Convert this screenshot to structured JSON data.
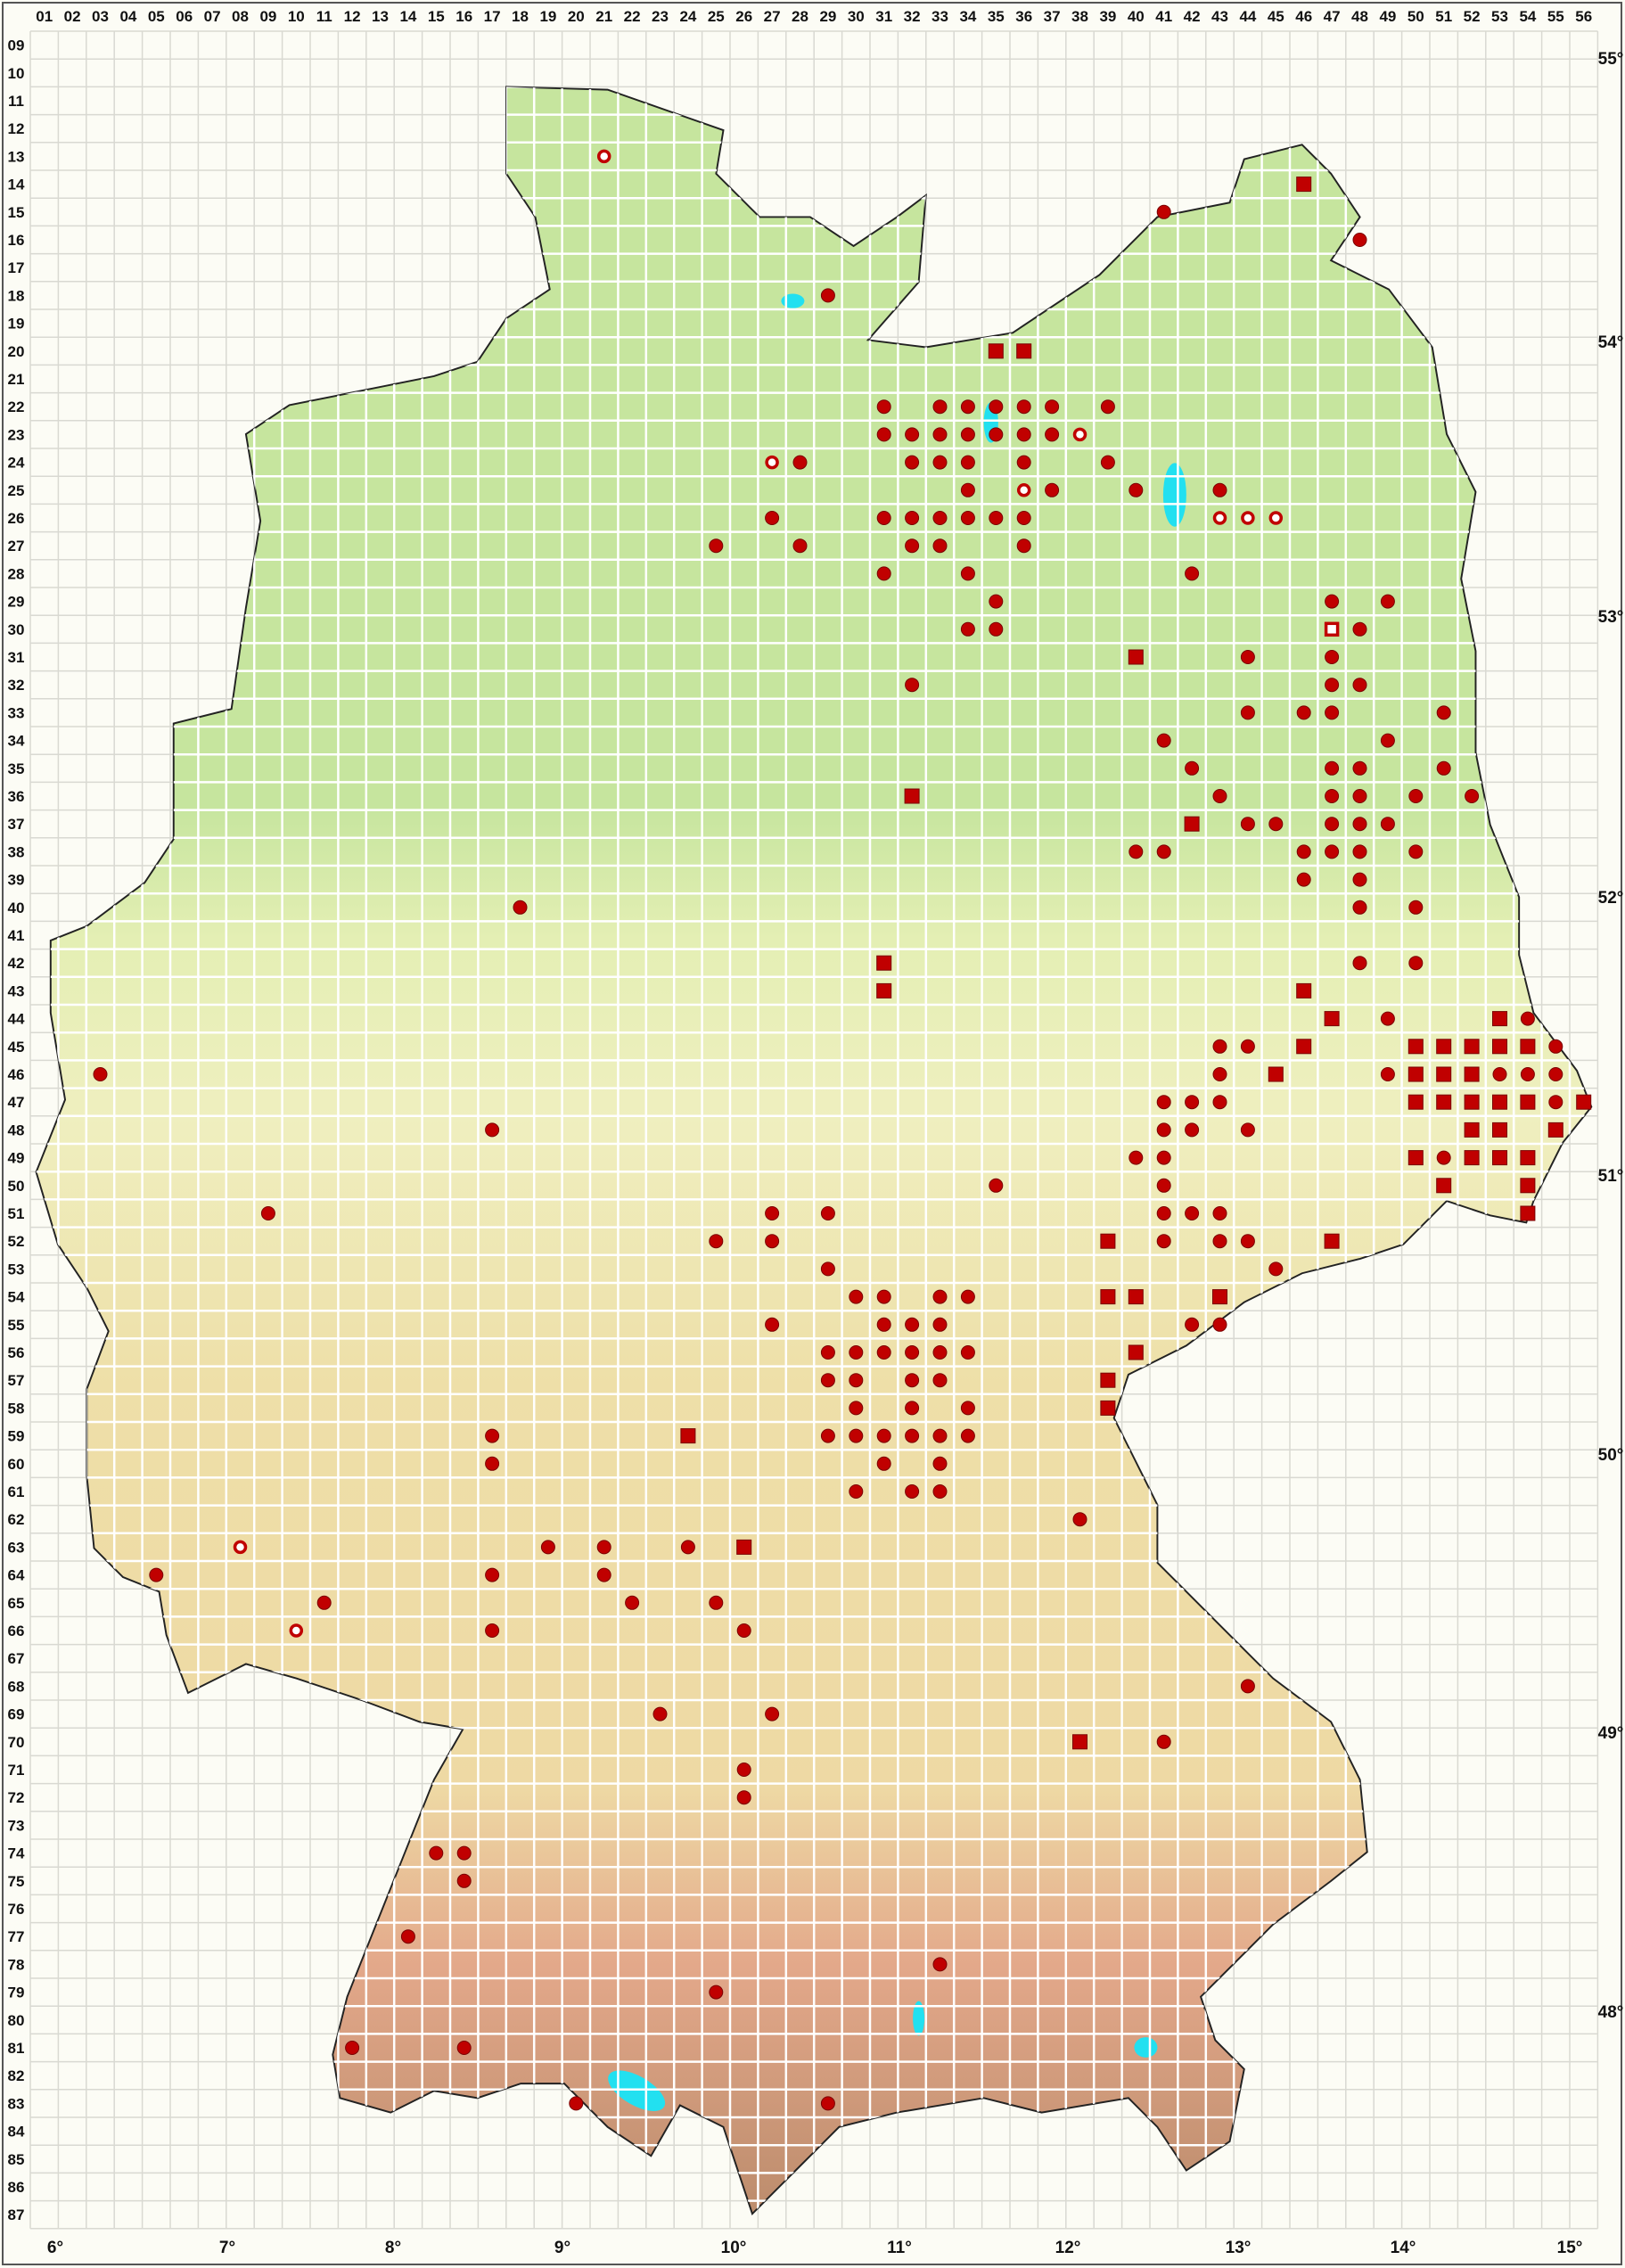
{
  "map": {
    "column_labels": [
      "01",
      "02",
      "03",
      "04",
      "05",
      "06",
      "07",
      "08",
      "09",
      "10",
      "11",
      "12",
      "13",
      "14",
      "15",
      "16",
      "17",
      "18",
      "19",
      "20",
      "21",
      "22",
      "23",
      "24",
      "25",
      "26",
      "27",
      "28",
      "29",
      "30",
      "31",
      "32",
      "33",
      "34",
      "35",
      "36",
      "37",
      "38",
      "39",
      "40",
      "41",
      "42",
      "43",
      "44",
      "45",
      "46",
      "47",
      "48",
      "49",
      "50",
      "51",
      "52",
      "53",
      "54",
      "55",
      "56"
    ],
    "row_labels": [
      "09",
      "10",
      "11",
      "12",
      "13",
      "14",
      "15",
      "16",
      "17",
      "18",
      "19",
      "20",
      "21",
      "22",
      "23",
      "24",
      "25",
      "26",
      "27",
      "28",
      "29",
      "30",
      "31",
      "32",
      "33",
      "34",
      "35",
      "36",
      "37",
      "38",
      "39",
      "40",
      "41",
      "42",
      "43",
      "44",
      "45",
      "46",
      "47",
      "48",
      "49",
      "50",
      "51",
      "52",
      "53",
      "54",
      "55",
      "56",
      "57",
      "58",
      "59",
      "60",
      "61",
      "62",
      "63",
      "64",
      "65",
      "66",
      "67",
      "68",
      "69",
      "70",
      "71",
      "72",
      "73",
      "74",
      "75",
      "76",
      "77",
      "78",
      "79",
      "80",
      "81",
      "82",
      "83",
      "84",
      "85",
      "86",
      "87"
    ],
    "longitude_labels": [
      "6°",
      "7°",
      "8°",
      "9°",
      "10°",
      "11°",
      "12°",
      "13°",
      "14°",
      "15°"
    ],
    "latitude_labels": [
      "55°",
      "54°",
      "53°",
      "52°",
      "51°",
      "50°",
      "49°",
      "48°"
    ],
    "colors": {
      "marker": "#c00000",
      "marker_edge": "#7a0000",
      "background": "#fcfcf5",
      "grid_outside": "#d9d9d2",
      "grid_inside": "#ffffff",
      "lowland": "#c6e59e",
      "upland": "#efefbf",
      "hills": "#eed9a4",
      "mountains": "#e3a88a",
      "water": "#22e0f0",
      "border": "#222222"
    },
    "symbol_types": [
      "dot",
      "square",
      "ring",
      "open-square"
    ],
    "records": [
      {
        "row": 13,
        "ring": [
          21
        ]
      },
      {
        "row": 14,
        "square": [
          46
        ]
      },
      {
        "row": 15,
        "dot": [
          41
        ]
      },
      {
        "row": 16,
        "dot": [
          48
        ]
      },
      {
        "row": 18,
        "dot": [
          29
        ]
      },
      {
        "row": 20,
        "square": [
          35,
          36
        ]
      },
      {
        "row": 22,
        "dot": [
          31,
          33,
          34,
          35,
          36,
          37,
          39
        ]
      },
      {
        "row": 23,
        "dot": [
          31,
          32,
          33,
          34,
          35,
          36,
          37
        ],
        "ring": [
          38
        ]
      },
      {
        "row": 24,
        "dot": [
          28,
          32,
          33,
          34,
          36,
          39
        ],
        "ring": [
          27
        ]
      },
      {
        "row": 25,
        "dot": [
          34,
          37,
          40,
          43
        ],
        "ring": [
          36
        ]
      },
      {
        "row": 26,
        "dot": [
          27,
          31,
          32,
          33,
          34,
          35,
          36
        ],
        "ring": [
          43,
          44,
          45
        ]
      },
      {
        "row": 27,
        "dot": [
          25,
          28,
          32,
          33,
          36
        ]
      },
      {
        "row": 28,
        "dot": [
          31,
          34,
          42
        ]
      },
      {
        "row": 29,
        "dot": [
          35,
          47,
          49
        ]
      },
      {
        "row": 30,
        "dot": [
          34,
          35,
          48
        ],
        "open-square": [
          47
        ]
      },
      {
        "row": 31,
        "dot": [
          44,
          47
        ],
        "square": [
          40
        ]
      },
      {
        "row": 32,
        "dot": [
          32,
          47,
          48
        ]
      },
      {
        "row": 33,
        "dot": [
          44,
          46,
          47,
          51
        ]
      },
      {
        "row": 34,
        "dot": [
          41,
          49
        ]
      },
      {
        "row": 35,
        "dot": [
          42,
          47,
          48,
          51
        ]
      },
      {
        "row": 36,
        "dot": [
          43,
          47,
          48,
          50,
          52
        ],
        "square": [
          32
        ]
      },
      {
        "row": 37,
        "dot": [
          44,
          45,
          47,
          48,
          49
        ],
        "square": [
          42
        ]
      },
      {
        "row": 38,
        "dot": [
          40,
          41,
          46,
          47,
          48,
          50
        ]
      },
      {
        "row": 39,
        "dot": [
          46,
          48
        ]
      },
      {
        "row": 40,
        "dot": [
          18,
          48,
          50
        ]
      },
      {
        "row": 42,
        "dot": [
          48,
          50
        ],
        "square": [
          31
        ]
      },
      {
        "row": 43,
        "square": [
          31,
          46
        ]
      },
      {
        "row": 44,
        "dot": [
          49,
          54
        ],
        "square": [
          47,
          53
        ]
      },
      {
        "row": 45,
        "dot": [
          43,
          44,
          55
        ],
        "square": [
          46,
          50,
          51,
          52,
          53,
          54
        ]
      },
      {
        "row": 46,
        "dot": [
          3,
          43,
          49,
          53,
          54,
          55
        ],
        "square": [
          45,
          50,
          51,
          52
        ]
      },
      {
        "row": 47,
        "dot": [
          41,
          42,
          43,
          55
        ],
        "square": [
          50,
          51,
          52,
          53,
          54,
          56
        ]
      },
      {
        "row": 48,
        "dot": [
          17,
          41,
          42,
          44
        ],
        "square": [
          52,
          53,
          55
        ]
      },
      {
        "row": 49,
        "dot": [
          40,
          41,
          51
        ],
        "square": [
          50,
          52,
          53,
          54
        ]
      },
      {
        "row": 50,
        "dot": [
          35,
          41
        ],
        "square": [
          51,
          54
        ]
      },
      {
        "row": 51,
        "dot": [
          9,
          27,
          29,
          41,
          42,
          43
        ],
        "square": [
          54
        ]
      },
      {
        "row": 52,
        "dot": [
          25,
          27,
          41,
          43,
          44
        ],
        "square": [
          39,
          47
        ]
      },
      {
        "row": 53,
        "dot": [
          29,
          45
        ]
      },
      {
        "row": 54,
        "dot": [
          30,
          31,
          33,
          34
        ],
        "square": [
          39,
          40,
          43
        ]
      },
      {
        "row": 55,
        "dot": [
          27,
          31,
          32,
          33,
          42,
          43
        ]
      },
      {
        "row": 56,
        "dot": [
          29,
          30,
          31,
          32,
          33,
          34
        ],
        "square": [
          40
        ]
      },
      {
        "row": 57,
        "dot": [
          29,
          30,
          32,
          33
        ],
        "square": [
          39
        ]
      },
      {
        "row": 58,
        "dot": [
          30,
          32,
          34
        ],
        "square": [
          39
        ]
      },
      {
        "row": 59,
        "dot": [
          17,
          29,
          30,
          31,
          32,
          33,
          34
        ],
        "square": [
          24
        ]
      },
      {
        "row": 60,
        "dot": [
          17,
          31,
          33
        ]
      },
      {
        "row": 61,
        "dot": [
          30,
          32,
          33
        ]
      },
      {
        "row": 62,
        "dot": [
          38
        ]
      },
      {
        "row": 63,
        "dot": [
          19,
          21,
          24
        ],
        "square": [
          26
        ],
        "ring": [
          8
        ]
      },
      {
        "row": 64,
        "dot": [
          5,
          17,
          21
        ]
      },
      {
        "row": 65,
        "dot": [
          11,
          22,
          25
        ]
      },
      {
        "row": 66,
        "dot": [
          17,
          26
        ],
        "ring": [
          10
        ]
      },
      {
        "row": 68,
        "dot": [
          44
        ]
      },
      {
        "row": 69,
        "dot": [
          23,
          27
        ]
      },
      {
        "row": 70,
        "dot": [
          41
        ],
        "square": [
          38
        ]
      },
      {
        "row": 71,
        "dot": [
          26
        ]
      },
      {
        "row": 72,
        "dot": [
          26
        ]
      },
      {
        "row": 74,
        "dot": [
          15,
          16
        ]
      },
      {
        "row": 75,
        "dot": [
          16
        ]
      },
      {
        "row": 77,
        "dot": [
          14
        ]
      },
      {
        "row": 78,
        "dot": [
          33
        ]
      },
      {
        "row": 79,
        "dot": [
          25
        ]
      },
      {
        "row": 81,
        "dot": [
          12,
          16
        ]
      },
      {
        "row": 83,
        "dot": [
          20,
          29
        ]
      }
    ]
  }
}
